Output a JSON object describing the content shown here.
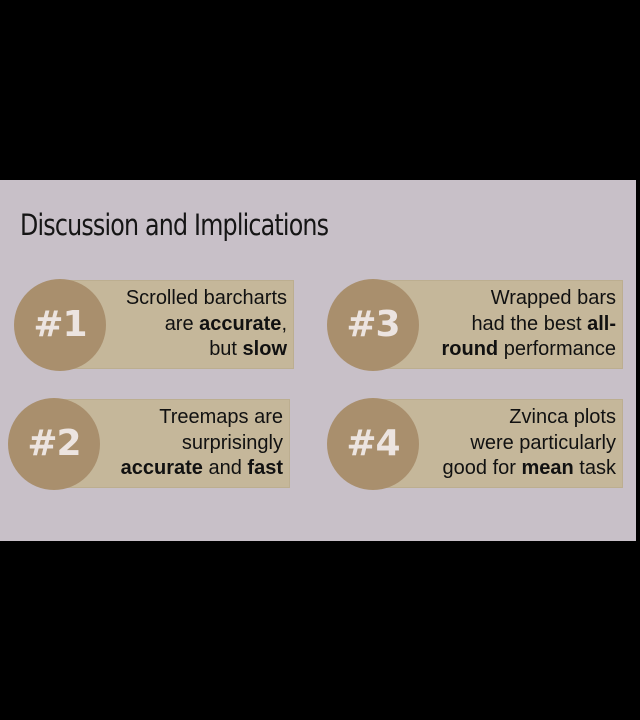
{
  "slide": {
    "title": "Discussion and Implications",
    "colors": {
      "background": "#c8c0c8",
      "card_fill": "#c5b79a",
      "badge_fill": "#a98f6d",
      "badge_text": "#ece4e0"
    }
  },
  "findings": [
    {
      "badge": "#1",
      "lines": [
        [
          {
            "text": "Scrolled barcharts",
            "bold": false
          }
        ],
        [
          {
            "text": "are ",
            "bold": false
          },
          {
            "text": "accurate",
            "bold": true
          },
          {
            "text": ",",
            "bold": false
          }
        ],
        [
          {
            "text": "but ",
            "bold": false
          },
          {
            "text": "slow",
            "bold": true
          }
        ]
      ]
    },
    {
      "badge": "#3",
      "lines": [
        [
          {
            "text": "Wrapped bars",
            "bold": false
          }
        ],
        [
          {
            "text": "had the best ",
            "bold": false
          },
          {
            "text": "all-",
            "bold": true
          }
        ],
        [
          {
            "text": "round",
            "bold": true
          },
          {
            "text": " performance",
            "bold": false
          }
        ]
      ]
    },
    {
      "badge": "#2",
      "lines": [
        [
          {
            "text": "Treemaps are",
            "bold": false
          }
        ],
        [
          {
            "text": "surprisingly",
            "bold": false
          }
        ],
        [
          {
            "text": "accurate",
            "bold": true
          },
          {
            "text": " and ",
            "bold": false
          },
          {
            "text": "fast",
            "bold": true
          }
        ]
      ]
    },
    {
      "badge": "#4",
      "lines": [
        [
          {
            "text": "Zvinca plots",
            "bold": false
          }
        ],
        [
          {
            "text": "were particularly",
            "bold": false
          }
        ],
        [
          {
            "text": "good for ",
            "bold": false
          },
          {
            "text": "mean",
            "bold": true
          },
          {
            "text": " task",
            "bold": false
          }
        ]
      ]
    }
  ]
}
